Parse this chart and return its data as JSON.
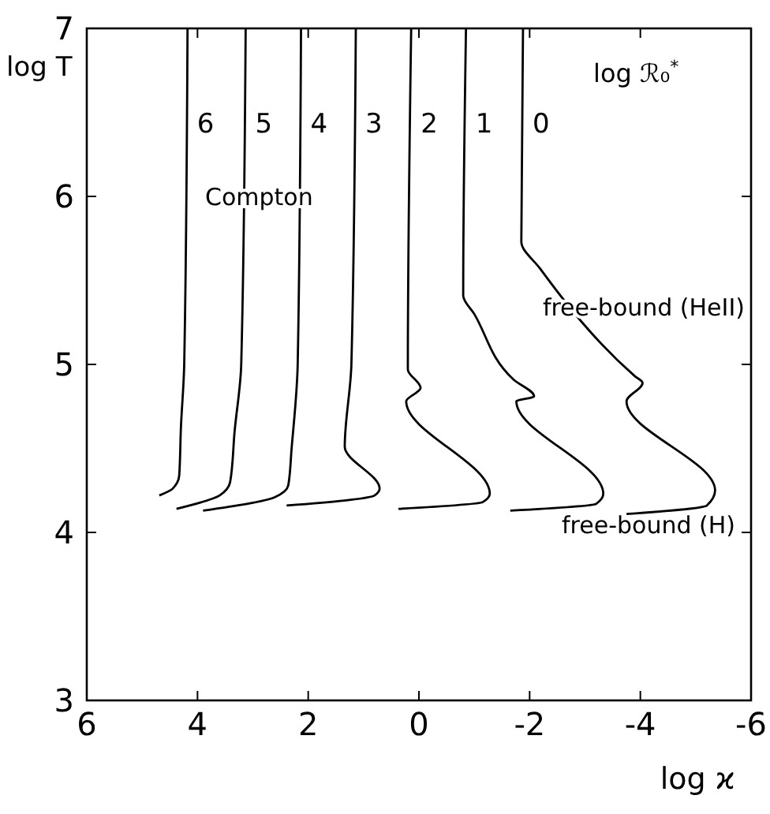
{
  "chart_data": {
    "type": "line",
    "xlabel": "log ϰ",
    "ylabel": "log T",
    "xlim": [
      6,
      -6
    ],
    "ylim": [
      3,
      7
    ],
    "xticks": [
      6,
      4,
      2,
      0,
      -2,
      -4,
      -6
    ],
    "yticks": [
      3,
      4,
      5,
      6,
      7
    ],
    "grid": false,
    "legend": "top",
    "legend_title": "log ℛ₀$^{*}$",
    "marker": "none",
    "line_style": "solid",
    "series": [
      {
        "name": "6",
        "color": "#000000",
        "x": [
          4.18,
          4.24,
          4.3,
          4.33,
          4.45,
          4.69
        ],
        "values": [
          7,
          5,
          4.62,
          4.34,
          4.26,
          4.22
        ]
      },
      {
        "name": "5",
        "color": "#000000",
        "x": [
          3.13,
          3.21,
          3.33,
          3.41,
          3.6,
          4.38
        ],
        "values": [
          7,
          5,
          4.6,
          4.3,
          4.22,
          4.14
        ]
      },
      {
        "name": "4",
        "color": "#000000",
        "x": [
          2.13,
          2.19,
          2.3,
          2.36,
          2.6,
          3.9
        ],
        "values": [
          7,
          5,
          4.5,
          4.28,
          4.21,
          4.13
        ]
      },
      {
        "name": "3",
        "color": "#000000",
        "x": [
          1.14,
          1.22,
          1.34,
          0.71,
          0.8,
          2.39
        ],
        "values": [
          7,
          5,
          4.51,
          4.26,
          4.22,
          4.16
        ]
      },
      {
        "name": "2",
        "color": "#000000",
        "x": [
          0.14,
          0.2,
          -0.03,
          0.23,
          -1.28,
          -1.15,
          0.37
        ],
        "values": [
          7,
          4.97,
          4.86,
          4.78,
          4.23,
          4.18,
          4.14
        ]
      },
      {
        "name": "1",
        "color": "#000000",
        "x": [
          -0.85,
          -0.8,
          -1.0,
          -1.71,
          -2.08,
          -1.76,
          -3.33,
          -3.2,
          -1.65
        ],
        "values": [
          7,
          5.41,
          5.3,
          4.91,
          4.81,
          4.78,
          4.23,
          4.17,
          4.13
        ]
      },
      {
        "name": "0",
        "color": "#000000",
        "x": [
          -1.88,
          -1.85,
          -2.19,
          -3.9,
          -4.04,
          -3.75,
          -5.35,
          -5.2,
          -3.75
        ],
        "values": [
          7,
          5.73,
          5.57,
          4.93,
          4.89,
          4.78,
          4.25,
          4.16,
          4.11
        ]
      }
    ],
    "annotations": [
      "Compton",
      "free-bound (HeII)",
      "free-bound (H)"
    ]
  }
}
